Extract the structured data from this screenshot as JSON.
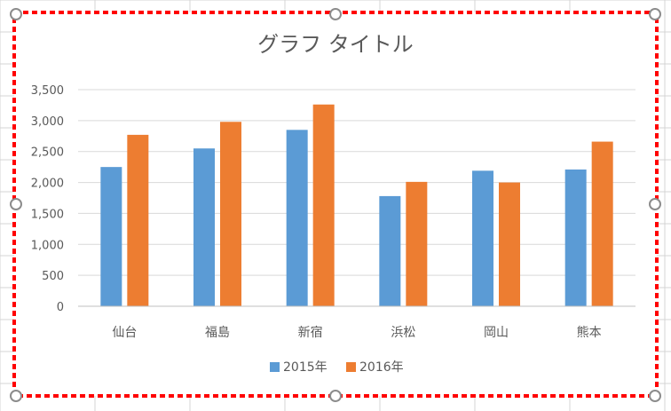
{
  "chart_data": {
    "type": "bar",
    "title": "グラフ タイトル",
    "categories": [
      "仙台",
      "福島",
      "新宿",
      "浜松",
      "岡山",
      "熊本"
    ],
    "series": [
      {
        "name": "2015年",
        "color": "#5b9bd5",
        "values": [
          2250,
          2550,
          2850,
          1780,
          2190,
          2210
        ]
      },
      {
        "name": "2016年",
        "color": "#ed7d31",
        "values": [
          2770,
          2980,
          3260,
          2010,
          2000,
          2660
        ]
      }
    ],
    "ylim": [
      0,
      3500
    ],
    "yticks": [
      0,
      500,
      1000,
      1500,
      2000,
      2500,
      3000,
      3500
    ],
    "ytick_labels": [
      "0",
      "500",
      "1,000",
      "1,500",
      "2,000",
      "2,500",
      "3,000",
      "3,500"
    ],
    "grid": true,
    "legend": "bottom"
  }
}
